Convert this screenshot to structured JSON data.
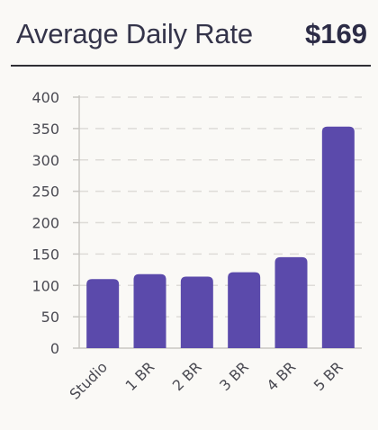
{
  "header": {
    "title": "Average Daily Rate",
    "value": "$169"
  },
  "colors": {
    "bar": "#5b4aab",
    "grid": "#dedcd8",
    "axis": "#c9c7c3",
    "text": "#4a4a52"
  },
  "chart_data": {
    "type": "bar",
    "title": "",
    "xlabel": "",
    "ylabel": "",
    "categories": [
      "Studio",
      "1 BR",
      "2 BR",
      "3 BR",
      "4 BR",
      "5 BR"
    ],
    "values": [
      110,
      118,
      114,
      121,
      145,
      353
    ],
    "ylim": [
      0,
      400
    ],
    "yticks": [
      0,
      50,
      100,
      150,
      200,
      250,
      300,
      350,
      400
    ],
    "grid": true,
    "legend": "none"
  }
}
